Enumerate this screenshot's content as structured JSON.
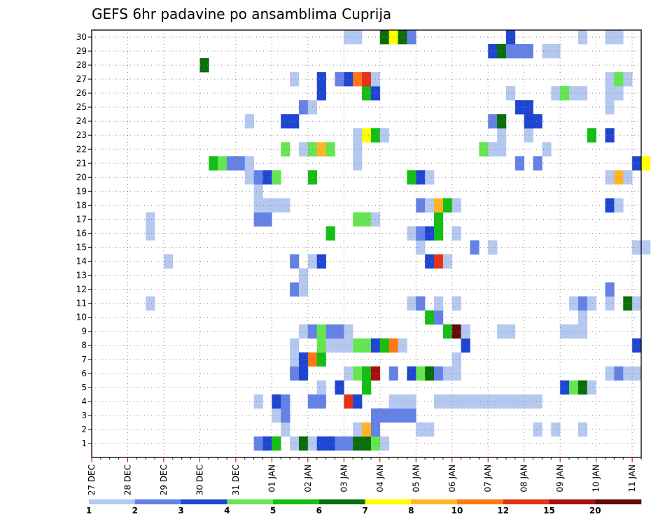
{
  "chart_data": {
    "type": "heatmap",
    "title": "GEFS 6hr padavine po ansamblima Cuprija",
    "xlabel": "",
    "ylabel": "",
    "x_tick_labels": [
      "27 DEC",
      "28 DEC",
      "29 DEC",
      "30 DEC",
      "31 DEC",
      "01 JAN",
      "02 JAN",
      "03 JAN",
      "04 JAN",
      "05 JAN",
      "06 JAN",
      "07 JAN",
      "08 JAN",
      "09 JAN",
      "10 JAN",
      "11 JAN"
    ],
    "y_tick_labels": [
      "1",
      "2",
      "3",
      "4",
      "5",
      "6",
      "7",
      "8",
      "9",
      "10",
      "11",
      "12",
      "13",
      "14",
      "15",
      "16",
      "17",
      "18",
      "19",
      "20",
      "21",
      "22",
      "23",
      "24",
      "25",
      "26",
      "27",
      "28",
      "29",
      "30"
    ],
    "xlim_steps": [
      0,
      61
    ],
    "ylim_members": [
      0,
      30
    ],
    "grid": true,
    "colorbar_labels": [
      "1",
      "2",
      "3",
      "4",
      "5",
      "6",
      "7",
      "8",
      "10",
      "12",
      "15",
      "20"
    ],
    "colorbar_colors": [
      "#b4c8f0",
      "#6482e6",
      "#1e46d2",
      "#64e650",
      "#14be14",
      "#0a6e0a",
      "#ffff00",
      "#ffb428",
      "#ff7814",
      "#e63214",
      "#aa0f0f",
      "#640a0a"
    ],
    "cells_note_units": "[step(6h index from 27 DEC 00z), member, level_index]",
    "cells": [
      [
        18,
        1,
        1
      ],
      [
        19,
        1,
        2
      ],
      [
        20,
        1,
        4
      ],
      [
        22,
        1,
        0
      ],
      [
        23,
        1,
        5
      ],
      [
        24,
        1,
        0
      ],
      [
        25,
        1,
        2
      ],
      [
        26,
        1,
        2
      ],
      [
        27,
        1,
        1
      ],
      [
        28,
        1,
        1
      ],
      [
        29,
        1,
        5
      ],
      [
        30,
        1,
        5
      ],
      [
        31,
        1,
        3
      ],
      [
        32,
        1,
        0
      ],
      [
        29,
        2,
        0
      ],
      [
        30,
        2,
        7
      ],
      [
        31,
        2,
        1
      ],
      [
        36,
        2,
        0
      ],
      [
        37,
        2,
        0
      ],
      [
        49,
        2,
        0
      ],
      [
        51,
        2,
        0
      ],
      [
        54,
        2,
        0
      ],
      [
        21,
        2,
        0
      ],
      [
        20,
        3,
        0
      ],
      [
        21,
        3,
        1
      ],
      [
        31,
        3,
        1
      ],
      [
        32,
        3,
        1
      ],
      [
        33,
        3,
        1
      ],
      [
        34,
        3,
        1
      ],
      [
        35,
        3,
        1
      ],
      [
        28,
        4,
        9
      ],
      [
        29,
        4,
        2
      ],
      [
        33,
        4,
        0
      ],
      [
        34,
        4,
        0
      ],
      [
        35,
        4,
        0
      ],
      [
        38,
        4,
        0
      ],
      [
        39,
        4,
        0
      ],
      [
        40,
        4,
        0
      ],
      [
        41,
        4,
        0
      ],
      [
        42,
        4,
        0
      ],
      [
        43,
        4,
        0
      ],
      [
        44,
        4,
        0
      ],
      [
        45,
        4,
        0
      ],
      [
        46,
        4,
        0
      ],
      [
        47,
        4,
        0
      ],
      [
        48,
        4,
        0
      ],
      [
        49,
        4,
        0
      ],
      [
        20,
        4,
        2
      ],
      [
        21,
        4,
        1
      ],
      [
        24,
        4,
        1
      ],
      [
        25,
        4,
        1
      ],
      [
        18,
        4,
        0
      ],
      [
        25,
        5,
        0
      ],
      [
        27,
        5,
        2
      ],
      [
        30,
        5,
        4
      ],
      [
        52,
        5,
        2
      ],
      [
        53,
        5,
        3
      ],
      [
        54,
        5,
        5
      ],
      [
        55,
        5,
        0
      ],
      [
        22,
        6,
        1
      ],
      [
        23,
        6,
        2
      ],
      [
        28,
        6,
        0
      ],
      [
        29,
        6,
        3
      ],
      [
        30,
        6,
        4
      ],
      [
        31,
        6,
        10
      ],
      [
        33,
        6,
        1
      ],
      [
        35,
        6,
        2
      ],
      [
        36,
        6,
        3
      ],
      [
        37,
        6,
        5
      ],
      [
        38,
        6,
        1
      ],
      [
        39,
        6,
        0
      ],
      [
        40,
        6,
        0
      ],
      [
        57,
        6,
        0
      ],
      [
        58,
        6,
        1
      ],
      [
        59,
        6,
        0
      ],
      [
        60,
        6,
        0
      ],
      [
        22,
        7,
        0
      ],
      [
        23,
        7,
        2
      ],
      [
        24,
        7,
        8
      ],
      [
        25,
        7,
        4
      ],
      [
        40,
        7,
        0
      ],
      [
        22,
        8,
        0
      ],
      [
        25,
        8,
        3
      ],
      [
        26,
        8,
        0
      ],
      [
        27,
        8,
        0
      ],
      [
        28,
        8,
        0
      ],
      [
        29,
        8,
        3
      ],
      [
        30,
        8,
        3
      ],
      [
        31,
        8,
        2
      ],
      [
        32,
        8,
        4
      ],
      [
        33,
        8,
        8
      ],
      [
        34,
        8,
        0
      ],
      [
        41,
        8,
        2
      ],
      [
        60,
        8,
        2
      ],
      [
        23,
        9,
        0
      ],
      [
        24,
        9,
        1
      ],
      [
        25,
        9,
        3
      ],
      [
        26,
        9,
        1
      ],
      [
        27,
        9,
        1
      ],
      [
        28,
        9,
        0
      ],
      [
        45,
        9,
        0
      ],
      [
        46,
        9,
        0
      ],
      [
        52,
        9,
        0
      ],
      [
        53,
        9,
        0
      ],
      [
        54,
        9,
        0
      ],
      [
        39,
        9,
        4
      ],
      [
        40,
        9,
        11
      ],
      [
        41,
        9,
        0
      ],
      [
        37,
        10,
        4
      ],
      [
        38,
        10,
        1
      ],
      [
        54,
        10,
        0
      ],
      [
        35,
        11,
        0
      ],
      [
        36,
        11,
        1
      ],
      [
        38,
        11,
        0
      ],
      [
        40,
        11,
        0
      ],
      [
        53,
        11,
        0
      ],
      [
        54,
        11,
        1
      ],
      [
        55,
        11,
        0
      ],
      [
        57,
        11,
        0
      ],
      [
        59,
        11,
        5
      ],
      [
        60,
        11,
        0
      ],
      [
        6,
        11,
        0
      ],
      [
        22,
        12,
        1
      ],
      [
        23,
        12,
        0
      ],
      [
        57,
        12,
        1
      ],
      [
        23,
        13,
        0
      ],
      [
        24,
        14,
        0
      ],
      [
        25,
        14,
        2
      ],
      [
        37,
        14,
        2
      ],
      [
        38,
        14,
        9
      ],
      [
        39,
        14,
        0
      ],
      [
        8,
        14,
        0
      ],
      [
        36,
        15,
        0
      ],
      [
        42,
        15,
        1
      ],
      [
        44,
        15,
        0
      ],
      [
        60,
        15,
        0
      ],
      [
        22,
        14,
        1
      ],
      [
        26,
        16,
        4
      ],
      [
        35,
        16,
        0
      ],
      [
        36,
        16,
        1
      ],
      [
        37,
        16,
        2
      ],
      [
        38,
        16,
        4
      ],
      [
        40,
        16,
        0
      ],
      [
        61,
        15,
        0
      ],
      [
        6,
        16,
        0
      ],
      [
        6,
        17,
        0
      ],
      [
        18,
        17,
        1
      ],
      [
        19,
        17,
        1
      ],
      [
        29,
        17,
        3
      ],
      [
        30,
        17,
        3
      ],
      [
        31,
        17,
        0
      ],
      [
        38,
        17,
        4
      ],
      [
        18,
        18,
        0
      ],
      [
        19,
        18,
        0
      ],
      [
        20,
        18,
        0
      ],
      [
        21,
        18,
        0
      ],
      [
        36,
        18,
        1
      ],
      [
        37,
        18,
        0
      ],
      [
        38,
        18,
        7
      ],
      [
        39,
        18,
        4
      ],
      [
        40,
        18,
        0
      ],
      [
        57,
        18,
        2
      ],
      [
        58,
        18,
        0
      ],
      [
        18,
        19,
        0
      ],
      [
        17,
        20,
        0
      ],
      [
        18,
        20,
        1
      ],
      [
        19,
        20,
        2
      ],
      [
        20,
        20,
        3
      ],
      [
        24,
        20,
        4
      ],
      [
        35,
        20,
        4
      ],
      [
        36,
        20,
        2
      ],
      [
        37,
        20,
        0
      ],
      [
        57,
        20,
        0
      ],
      [
        58,
        20,
        7
      ],
      [
        59,
        20,
        0
      ],
      [
        13,
        21,
        4
      ],
      [
        14,
        21,
        3
      ],
      [
        15,
        21,
        1
      ],
      [
        16,
        21,
        1
      ],
      [
        17,
        21,
        0
      ],
      [
        29,
        21,
        0
      ],
      [
        47,
        21,
        1
      ],
      [
        49,
        21,
        1
      ],
      [
        60,
        21,
        2
      ],
      [
        61,
        21,
        6
      ],
      [
        21,
        22,
        3
      ],
      [
        23,
        22,
        0
      ],
      [
        24,
        22,
        3
      ],
      [
        25,
        22,
        7
      ],
      [
        26,
        22,
        3
      ],
      [
        29,
        22,
        0
      ],
      [
        43,
        22,
        3
      ],
      [
        44,
        22,
        0
      ],
      [
        45,
        22,
        0
      ],
      [
        50,
        22,
        0
      ],
      [
        29,
        23,
        0
      ],
      [
        30,
        23,
        6
      ],
      [
        31,
        23,
        4
      ],
      [
        32,
        23,
        0
      ],
      [
        45,
        23,
        0
      ],
      [
        48,
        23,
        0
      ],
      [
        55,
        23,
        4
      ],
      [
        57,
        23,
        2
      ],
      [
        17,
        24,
        0
      ],
      [
        21,
        24,
        2
      ],
      [
        22,
        24,
        2
      ],
      [
        44,
        24,
        1
      ],
      [
        45,
        24,
        5
      ],
      [
        48,
        24,
        2
      ],
      [
        49,
        24,
        2
      ],
      [
        23,
        25,
        1
      ],
      [
        24,
        25,
        0
      ],
      [
        47,
        25,
        2
      ],
      [
        48,
        25,
        2
      ],
      [
        57,
        25,
        0
      ],
      [
        25,
        26,
        2
      ],
      [
        30,
        26,
        4
      ],
      [
        31,
        26,
        2
      ],
      [
        46,
        26,
        0
      ],
      [
        51,
        26,
        0
      ],
      [
        52,
        26,
        3
      ],
      [
        53,
        26,
        0
      ],
      [
        54,
        26,
        0
      ],
      [
        57,
        26,
        0
      ],
      [
        58,
        26,
        0
      ],
      [
        22,
        27,
        0
      ],
      [
        25,
        27,
        2
      ],
      [
        27,
        27,
        1
      ],
      [
        28,
        27,
        2
      ],
      [
        29,
        27,
        8
      ],
      [
        30,
        27,
        9
      ],
      [
        31,
        27,
        0
      ],
      [
        57,
        27,
        0
      ],
      [
        58,
        27,
        3
      ],
      [
        59,
        27,
        0
      ],
      [
        12,
        28,
        5
      ],
      [
        44,
        29,
        2
      ],
      [
        45,
        29,
        5
      ],
      [
        46,
        29,
        1
      ],
      [
        47,
        29,
        1
      ],
      [
        48,
        29,
        1
      ],
      [
        50,
        29,
        0
      ],
      [
        51,
        29,
        0
      ],
      [
        28,
        30,
        0
      ],
      [
        29,
        30,
        0
      ],
      [
        32,
        30,
        5
      ],
      [
        33,
        30,
        6
      ],
      [
        34,
        30,
        5
      ],
      [
        35,
        30,
        1
      ],
      [
        46,
        30,
        2
      ],
      [
        54,
        30,
        0
      ],
      [
        57,
        30,
        0
      ],
      [
        58,
        30,
        0
      ]
    ]
  }
}
